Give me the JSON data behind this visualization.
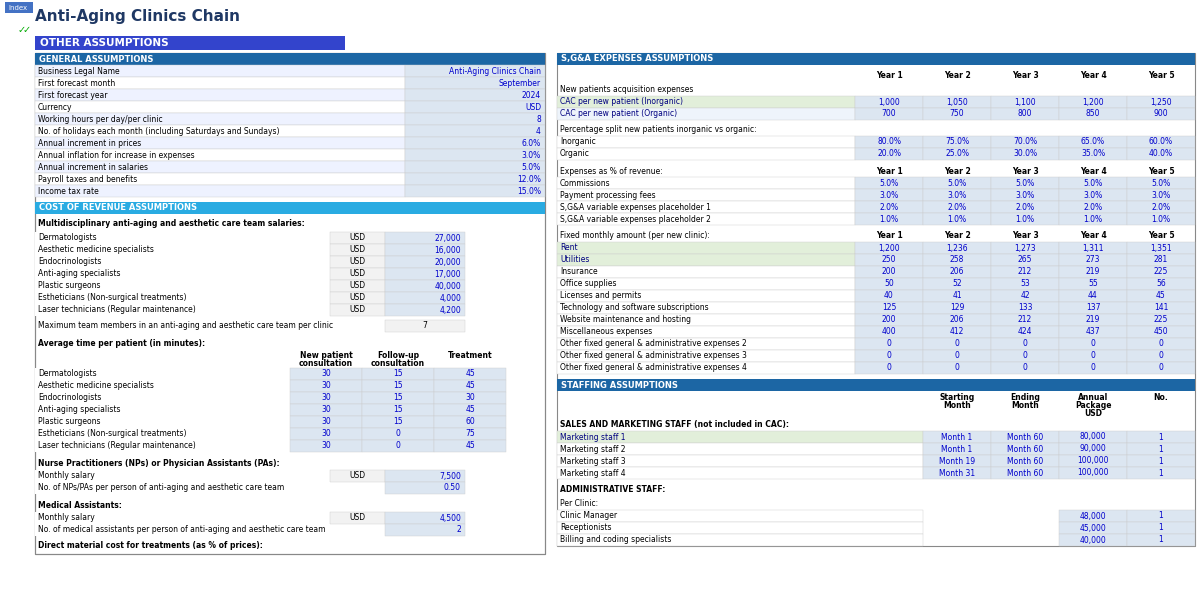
{
  "title": "Anti-Aging Clinics Chain",
  "tab_label": "Index",
  "section_header": "OTHER ASSUMPTIONS",
  "general_assumptions": {
    "header": "GENERAL ASSUMPTIONS",
    "rows": [
      [
        "Business Legal Name",
        "Anti-Aging Clinics Chain"
      ],
      [
        "First forecast month",
        "September"
      ],
      [
        "First forecast year",
        "2024"
      ],
      [
        "Currency",
        "USD"
      ],
      [
        "Working hours per day/per clinic",
        "8"
      ],
      [
        "No. of holidays each month (including Saturdays and Sundays)",
        "4"
      ],
      [
        "Annual increment in prices",
        "6.0%"
      ],
      [
        "Annual inflation for increase in expenses",
        "3.0%"
      ],
      [
        "Annual increment in salaries",
        "5.0%"
      ],
      [
        "Payroll taxes and benefits",
        "12.0%"
      ],
      [
        "Income tax rate",
        "15.0%"
      ]
    ]
  },
  "cost_assumptions": {
    "header": "COST OF REVENUE ASSUMPTIONS",
    "salaries_label": "Multidisciplinary anti-aging and aesthetic care team salaries:",
    "salary_rows": [
      [
        "Dermatologists",
        "USD",
        "27,000"
      ],
      [
        "Aesthetic medicine specialists",
        "USD",
        "16,000"
      ],
      [
        "Endocrinologists",
        "USD",
        "20,000"
      ],
      [
        "Anti-aging specialists",
        "USD",
        "17,000"
      ],
      [
        "Plastic surgeons",
        "USD",
        "40,000"
      ],
      [
        "Estheticians (Non-surgical treatments)",
        "USD",
        "4,000"
      ],
      [
        "Laser technicians (Regular maintenance)",
        "USD",
        "4,200"
      ]
    ],
    "max_team_label": "Maximum team members in an anti-aging and aesthetic care team per clinic",
    "max_team_value": "7",
    "avg_time_label": "Average time per patient (in minutes):",
    "avg_time_headers": [
      "New patient\nconsultation",
      "Follow-up\nconsultation",
      "Treatment"
    ],
    "avg_time_rows": [
      [
        "Dermatologists",
        "30",
        "15",
        "45"
      ],
      [
        "Aesthetic medicine specialists",
        "30",
        "15",
        "45"
      ],
      [
        "Endocrinologists",
        "30",
        "15",
        "30"
      ],
      [
        "Anti-aging specialists",
        "30",
        "15",
        "45"
      ],
      [
        "Plastic surgeons",
        "30",
        "15",
        "60"
      ],
      [
        "Estheticians (Non-surgical treatments)",
        "30",
        "0",
        "75"
      ],
      [
        "Laser technicians (Regular maintenance)",
        "30",
        "0",
        "45"
      ]
    ],
    "np_label": "Nurse Practitioners (NPs) or Physician Assistants (PAs):",
    "np_rows": [
      [
        "Monthly salary",
        "USD",
        "7,500"
      ],
      [
        "No. of NPs/PAs per person of anti-aging and aesthetic care team",
        "",
        "0.50"
      ]
    ],
    "ma_label": "Medical Assistants:",
    "ma_rows": [
      [
        "Monthly salary",
        "USD",
        "4,500"
      ],
      [
        "No. of medical assistants per person of anti-aging and aesthetic care team",
        "",
        "2"
      ]
    ],
    "direct_label": "Direct material cost for treatments (as % of prices):"
  },
  "sga_assumptions": {
    "header": "S,G&A EXPENSES ASSUMPTIONS",
    "year_headers": [
      "Year 1",
      "Year 2",
      "Year 3",
      "Year 4",
      "Year 5"
    ],
    "new_patient_label": "New patients acquisition expenses",
    "new_patient_rows": [
      [
        "CAC per new patient (Inorganic)",
        "1,000",
        "1,050",
        "1,100",
        "1,200",
        "1,250"
      ],
      [
        "CAC per new patient (Organic)",
        "700",
        "750",
        "800",
        "850",
        "900"
      ]
    ],
    "split_label": "Percentage split new patients inorganic vs organic:",
    "split_rows": [
      [
        "Inorganic",
        "80.0%",
        "75.0%",
        "70.0%",
        "65.0%",
        "60.0%"
      ],
      [
        "Organic",
        "20.0%",
        "25.0%",
        "30.0%",
        "35.0%",
        "40.0%"
      ]
    ],
    "expenses_label": "Expenses as % of revenue:",
    "expenses_rows": [
      [
        "Commissions",
        "5.0%",
        "5.0%",
        "5.0%",
        "5.0%",
        "5.0%"
      ],
      [
        "Payment processing fees",
        "3.0%",
        "3.0%",
        "3.0%",
        "3.0%",
        "3.0%"
      ],
      [
        "S,G&A variable expenses placeholder 1",
        "2.0%",
        "2.0%",
        "2.0%",
        "2.0%",
        "2.0%"
      ],
      [
        "S,G&A variable expenses placeholder 2",
        "1.0%",
        "1.0%",
        "1.0%",
        "1.0%",
        "1.0%"
      ]
    ],
    "fixed_label": "Fixed monthly amount (per new clinic):",
    "fixed_rows": [
      [
        "Rent",
        "1,200",
        "1,236",
        "1,273",
        "1,311",
        "1,351"
      ],
      [
        "Utilities",
        "250",
        "258",
        "265",
        "273",
        "281"
      ],
      [
        "Insurance",
        "200",
        "206",
        "212",
        "219",
        "225"
      ],
      [
        "Office supplies",
        "50",
        "52",
        "53",
        "55",
        "56"
      ],
      [
        "Licenses and permits",
        "40",
        "41",
        "42",
        "44",
        "45"
      ],
      [
        "Technology and software subscriptions",
        "125",
        "129",
        "133",
        "137",
        "141"
      ],
      [
        "Website maintenance and hosting",
        "200",
        "206",
        "212",
        "219",
        "225"
      ],
      [
        "Miscellaneous expenses",
        "400",
        "412",
        "424",
        "437",
        "450"
      ],
      [
        "Other fixed general & administrative expenses 2",
        "0",
        "0",
        "0",
        "0",
        "0"
      ],
      [
        "Other fixed general & administrative expenses 3",
        "0",
        "0",
        "0",
        "0",
        "0"
      ],
      [
        "Other fixed general & administrative expenses 4",
        "0",
        "0",
        "0",
        "0",
        "0"
      ]
    ]
  },
  "staffing_assumptions": {
    "header": "STAFFING ASSUMPTIONS",
    "col_headers": [
      "Starting\nMonth",
      "Ending\nMonth",
      "Annual\nPackage\nUSD",
      "No."
    ],
    "sales_label": "SALES AND MARKETING STAFF (not included in CAC):",
    "sales_rows": [
      [
        "Marketing staff 1",
        "Month 1",
        "Month 60",
        "80,000",
        "1"
      ],
      [
        "Marketing staff 2",
        "Month 1",
        "Month 60",
        "90,000",
        "1"
      ],
      [
        "Marketing staff 3",
        "Month 19",
        "Month 60",
        "100,000",
        "1"
      ],
      [
        "Marketing staff 4",
        "Month 31",
        "Month 60",
        "100,000",
        "1"
      ]
    ],
    "admin_label": "ADMINISTRATIVE STAFF:",
    "admin_sub_label": "Per Clinic:",
    "admin_rows": [
      [
        "Clinic Manager",
        "",
        "",
        "48,000",
        "1"
      ],
      [
        "Receptionists",
        "",
        "",
        "45,000",
        "1"
      ],
      [
        "Billing and coding specialists",
        "",
        "",
        "40,000",
        "1"
      ]
    ]
  }
}
